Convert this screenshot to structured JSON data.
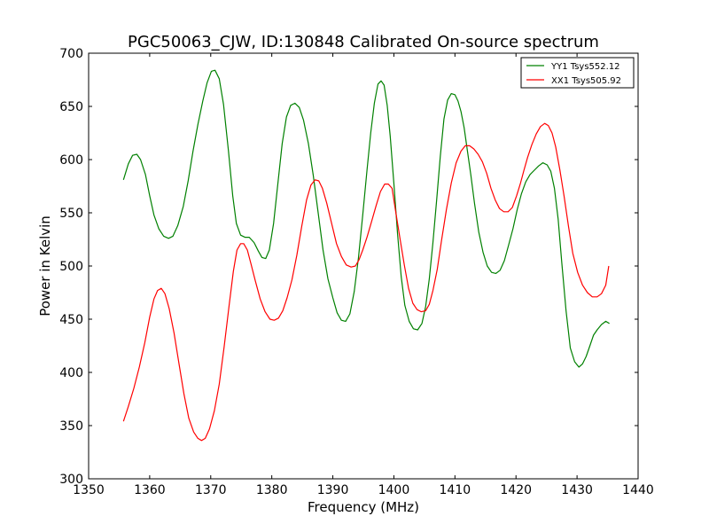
{
  "chart_data": {
    "type": "line",
    "title": "PGC50063_CJW, ID:130848 Calibrated On-source spectrum",
    "xlabel": "Frequency (MHz)",
    "ylabel": "Power in Kelvin",
    "xlim": [
      1350,
      1440
    ],
    "ylim": [
      300,
      700
    ],
    "xticks": [
      "1350",
      "1360",
      "1370",
      "1380",
      "1390",
      "1400",
      "1410",
      "1420",
      "1430",
      "1440"
    ],
    "yticks": [
      "300",
      "350",
      "400",
      "450",
      "500",
      "550",
      "600",
      "650",
      "700"
    ],
    "grid": false,
    "legend_position": "top-right",
    "series": [
      {
        "name": "YY1 Tsys552.12",
        "color": "#008000",
        "x": [
          1355.7,
          1356.5,
          1357.2,
          1357.9,
          1358.5,
          1359.3,
          1360.0,
          1360.7,
          1361.5,
          1362.3,
          1363.1,
          1363.8,
          1364.6,
          1365.5,
          1366.3,
          1367.1,
          1367.9,
          1368.7,
          1369.4,
          1370.1,
          1370.7,
          1371.4,
          1372.1,
          1372.9,
          1373.6,
          1374.2,
          1374.9,
          1375.6,
          1376.3,
          1377.1,
          1377.8,
          1378.4,
          1379.0,
          1379.6,
          1380.3,
          1381.0,
          1381.7,
          1382.4,
          1383.1,
          1383.8,
          1384.5,
          1385.2,
          1386.0,
          1386.8,
          1387.6,
          1388.4,
          1389.2,
          1390.0,
          1390.7,
          1391.4,
          1392.1,
          1392.8,
          1393.5,
          1394.2,
          1394.9,
          1395.6,
          1396.2,
          1396.8,
          1397.4,
          1397.9,
          1398.4,
          1398.9,
          1399.4,
          1400.0,
          1400.6,
          1401.2,
          1401.8,
          1402.5,
          1403.2,
          1403.9,
          1404.6,
          1405.2,
          1405.8,
          1406.4,
          1407.0,
          1407.6,
          1408.2,
          1408.8,
          1409.4,
          1410.0,
          1410.5,
          1411.0,
          1411.5,
          1412.0,
          1412.6,
          1413.2,
          1413.9,
          1414.6,
          1415.3,
          1416.0,
          1416.7,
          1417.4,
          1418.1,
          1418.8,
          1419.5,
          1420.2,
          1420.9,
          1421.6,
          1422.3,
          1423.0,
          1423.7,
          1424.4,
          1425.1,
          1425.7,
          1426.3,
          1426.9,
          1427.5,
          1428.2,
          1428.9,
          1429.6,
          1430.3,
          1430.9,
          1431.5,
          1432.1,
          1432.7,
          1433.3,
          1434.0,
          1434.7,
          1435.3
        ],
        "y": [
          581,
          596,
          604,
          605,
          600,
          586,
          566,
          548,
          535,
          528,
          526,
          528,
          538,
          556,
          580,
          608,
          633,
          655,
          672,
          683,
          684,
          676,
          652,
          608,
          566,
          540,
          529,
          527,
          527,
          522,
          514,
          508,
          507,
          515,
          540,
          578,
          615,
          640,
          651,
          653,
          649,
          637,
          615,
          585,
          550,
          515,
          488,
          470,
          456,
          449,
          448,
          455,
          476,
          508,
          548,
          590,
          625,
          653,
          671,
          674,
          670,
          651,
          622,
          578,
          530,
          490,
          463,
          448,
          441,
          440,
          446,
          462,
          488,
          522,
          562,
          603,
          638,
          656,
          662,
          661,
          655,
          645,
          630,
          610,
          586,
          559,
          532,
          513,
          500,
          494,
          493,
          496,
          505,
          520,
          535,
          553,
          568,
          579,
          586,
          590,
          594,
          597,
          595,
          589,
          573,
          544,
          503,
          458,
          423,
          410,
          405,
          408,
          415,
          425,
          435,
          440,
          445,
          448,
          446
        ],
        "_comment": ""
      },
      {
        "name": "XX1 Tsys505.92",
        "color": "#ff0000",
        "x": [
          1355.7,
          1356.5,
          1357.4,
          1358.3,
          1359.2,
          1360.0,
          1360.7,
          1361.3,
          1361.9,
          1362.5,
          1363.2,
          1364.0,
          1364.8,
          1365.6,
          1366.4,
          1367.2,
          1367.9,
          1368.5,
          1369.1,
          1369.8,
          1370.6,
          1371.4,
          1372.2,
          1373.0,
          1373.7,
          1374.3,
          1374.9,
          1375.4,
          1376.0,
          1376.6,
          1377.3,
          1378.1,
          1378.9,
          1379.7,
          1380.4,
          1381.1,
          1381.8,
          1382.5,
          1383.3,
          1384.1,
          1384.9,
          1385.7,
          1386.4,
          1387.1,
          1387.7,
          1388.3,
          1389.0,
          1389.8,
          1390.6,
          1391.4,
          1392.2,
          1393.0,
          1393.7,
          1394.3,
          1394.9,
          1395.6,
          1396.3,
          1397.1,
          1397.8,
          1398.5,
          1399.1,
          1399.7,
          1400.3,
          1401.0,
          1401.7,
          1402.4,
          1403.1,
          1403.8,
          1404.5,
          1405.2,
          1405.8,
          1406.4,
          1407.1,
          1407.8,
          1408.6,
          1409.4,
          1410.2,
          1411.0,
          1411.7,
          1412.4,
          1413.1,
          1413.8,
          1414.5,
          1415.2,
          1415.9,
          1416.6,
          1417.3,
          1418.0,
          1418.7,
          1419.4,
          1420.1,
          1420.7,
          1421.3,
          1421.9,
          1422.6,
          1423.3,
          1424.0,
          1424.7,
          1425.3,
          1425.9,
          1426.5,
          1427.2,
          1427.9,
          1428.6,
          1429.3,
          1430.1,
          1430.9,
          1431.7,
          1432.5,
          1433.3,
          1434.0,
          1434.7,
          1435.2
        ],
        "y": [
          354,
          368,
          385,
          405,
          428,
          452,
          469,
          477,
          479,
          474,
          460,
          437,
          408,
          380,
          357,
          344,
          338,
          336,
          338,
          347,
          364,
          389,
          424,
          462,
          495,
          515,
          521,
          521,
          515,
          502,
          486,
          469,
          457,
          450,
          449,
          451,
          458,
          470,
          487,
          510,
          537,
          562,
          576,
          581,
          580,
          573,
          559,
          540,
          521,
          509,
          501,
          499,
          500,
          506,
          515,
          527,
          541,
          557,
          570,
          577,
          577,
          573,
          551,
          526,
          501,
          479,
          465,
          459,
          457,
          458,
          464,
          477,
          497,
          524,
          553,
          578,
          597,
          608,
          613,
          613,
          610,
          605,
          598,
          587,
          573,
          562,
          554,
          551,
          551,
          555,
          566,
          577,
          590,
          602,
          614,
          624,
          631,
          634,
          632,
          625,
          612,
          590,
          565,
          537,
          512,
          494,
          482,
          475,
          471,
          471,
          474,
          482,
          500
        ]
      }
    ]
  }
}
